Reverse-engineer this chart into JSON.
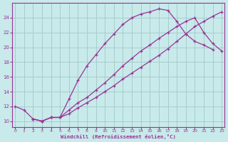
{
  "bg_color": "#c8eaea",
  "grid_color": "#a8cccc",
  "line_color": "#993399",
  "xlabel": "Windchill (Refroidissement éolien,°C)",
  "xlim": [
    -0.3,
    23.3
  ],
  "ylim": [
    9.2,
    26.0
  ],
  "xticks": [
    0,
    1,
    2,
    3,
    4,
    5,
    6,
    7,
    8,
    9,
    10,
    11,
    12,
    13,
    14,
    15,
    16,
    17,
    18,
    19,
    20,
    21,
    22,
    23
  ],
  "yticks": [
    10,
    12,
    14,
    16,
    18,
    20,
    22,
    24
  ],
  "curve1_x": [
    0,
    1,
    2,
    3,
    4,
    5,
    6,
    7,
    8,
    9,
    10,
    11,
    12,
    13,
    14,
    15,
    16,
    17,
    18,
    19,
    20,
    21,
    22
  ],
  "curve1_y": [
    12,
    11.5,
    10.3,
    10.0,
    10.5,
    10.5,
    13.0,
    15.5,
    17.5,
    19.0,
    20.5,
    21.8,
    23.1,
    24.0,
    24.5,
    24.8,
    25.2,
    25.0,
    23.5,
    21.8,
    20.8,
    20.3,
    19.7
  ],
  "curve2_x": [
    2,
    3,
    4,
    5,
    6,
    7,
    8,
    9,
    10,
    11,
    12,
    13,
    14,
    15,
    16,
    17,
    18,
    19,
    20,
    21,
    22,
    23
  ],
  "curve2_y": [
    10.3,
    10.0,
    10.5,
    10.5,
    11.5,
    12.5,
    13.2,
    14.2,
    15.2,
    16.3,
    17.5,
    18.5,
    19.5,
    20.3,
    21.2,
    22.0,
    22.8,
    23.5,
    24.0,
    22.0,
    20.5,
    19.5
  ],
  "curve3_x": [
    2,
    3,
    4,
    5,
    6,
    7,
    8,
    9,
    10,
    11,
    12,
    13,
    14,
    15,
    16,
    17,
    18,
    19,
    20,
    21,
    22,
    23
  ],
  "curve3_y": [
    10.3,
    10.0,
    10.5,
    10.5,
    11.0,
    11.8,
    12.5,
    13.2,
    14.0,
    14.8,
    15.7,
    16.5,
    17.3,
    18.1,
    18.9,
    19.8,
    20.8,
    21.8,
    22.8,
    23.5,
    24.2,
    24.8
  ]
}
